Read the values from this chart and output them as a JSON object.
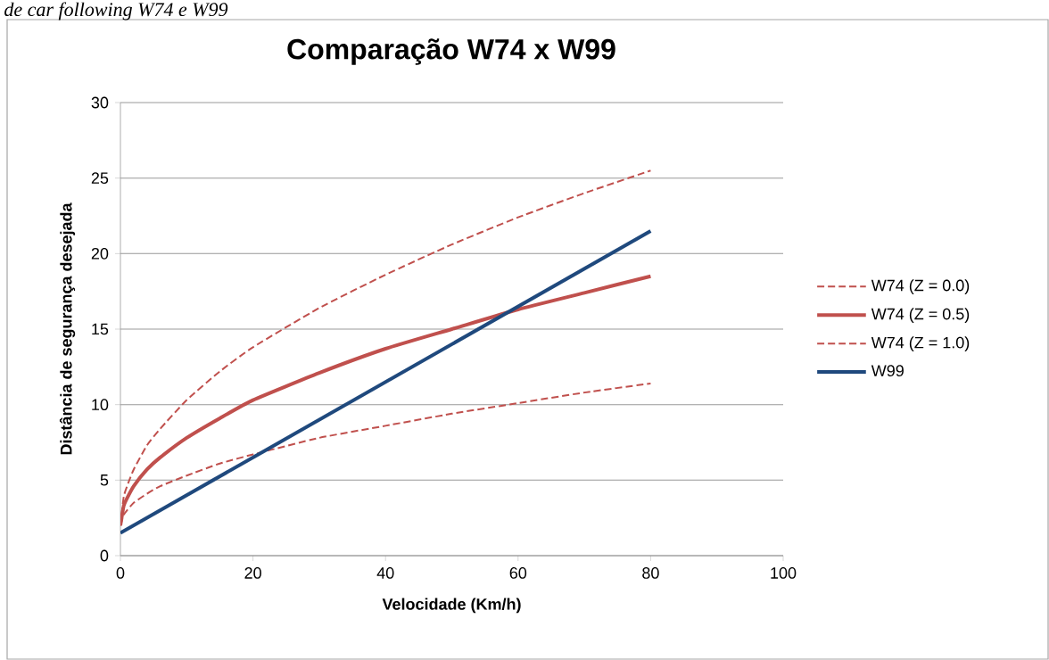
{
  "chart_data": {
    "type": "line",
    "title": "Comparação W74 x W99",
    "xlabel": "Velocidade (Km/h)",
    "ylabel": "Distância de segurança desejada",
    "annotations": [
      "*de car following W74 e W99*"
    ],
    "xlim": [
      0,
      100
    ],
    "xticks": [
      0,
      20,
      40,
      60,
      80,
      100
    ],
    "ylim": [
      0,
      30
    ],
    "yticks": [
      0,
      5,
      10,
      15,
      20,
      25,
      30
    ],
    "grid": "y",
    "legend": "right",
    "marker": "none",
    "series": [
      {
        "name": "W74 (Z = 0.0)",
        "color": "#c0504d",
        "line_style": "dashed",
        "x": [
          0,
          0.5,
          1,
          2,
          4,
          6,
          10,
          15,
          20,
          30,
          40,
          50,
          60,
          70,
          80
        ],
        "values": [
          2,
          3.9,
          4.6,
          5.7,
          7.3,
          8.4,
          10.3,
          12.2,
          13.8,
          16.4,
          18.6,
          20.6,
          22.4,
          24.0,
          25.5
        ]
      },
      {
        "name": "W74 (Z = 0.5)",
        "color": "#c0504d",
        "line_style": "solid",
        "x": [
          0,
          0.5,
          1,
          2,
          4,
          6,
          10,
          15,
          20,
          30,
          40,
          50,
          60,
          70,
          80
        ],
        "values": [
          2,
          3.3,
          3.8,
          4.6,
          5.7,
          6.5,
          7.8,
          9.1,
          10.3,
          12.1,
          13.7,
          15.0,
          16.3,
          17.4,
          18.5
        ]
      },
      {
        "name": "W74 (Z = 1.0)",
        "color": "#c0504d",
        "line_style": "dashed",
        "x": [
          0,
          0.5,
          1,
          2,
          4,
          6,
          10,
          15,
          20,
          30,
          40,
          50,
          60,
          70,
          80
        ],
        "values": [
          2,
          2.7,
          3.0,
          3.5,
          4.1,
          4.6,
          5.3,
          6.1,
          6.7,
          7.8,
          8.6,
          9.4,
          10.1,
          10.8,
          11.4
        ]
      },
      {
        "name": "W99",
        "color": "#1f497d",
        "line_style": "solid",
        "x": [
          0,
          80
        ],
        "values": [
          1.5,
          21.5
        ]
      }
    ]
  }
}
